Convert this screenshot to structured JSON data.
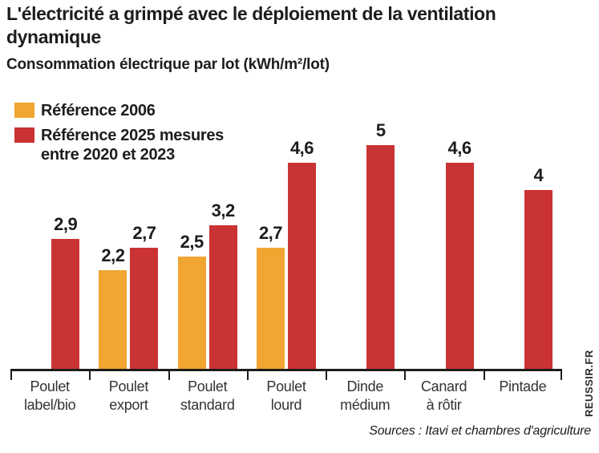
{
  "page": {
    "title": "L'électricité a grimpé avec le déploiement de la ventilation\ndynamique",
    "subtitle": "Consommation électrique par lot  (kWh/m²/lot)",
    "source": "Sources : Itavi et chambres d'agriculture",
    "watermark": "REUSSIR.FR"
  },
  "colors": {
    "orange": "#F0A630",
    "red": "#CA3333",
    "ink": "#1D1D1B"
  },
  "legend": {
    "items": [
      {
        "key": "reference-2006",
        "color": "#F0A630",
        "lines": [
          "Référence 2006"
        ]
      },
      {
        "key": "reference-2025",
        "color": "#CA3333",
        "lines": [
          "Référence 2025 mesures",
          "entre 2020 et 2023"
        ]
      }
    ]
  },
  "chart_data": {
    "type": "bar",
    "title": "L'électricité a grimpé avec le déploiement de la ventilation dynamique",
    "subtitle": "Consommation électrique par lot (kWh/m²/lot)",
    "ylabel": "kWh/m²/lot",
    "xlabel": "",
    "ylim": [
      0,
      5.6
    ],
    "grid": false,
    "legend_position": "top-left",
    "value_labels": true,
    "categories": [
      "Poulet\nlabel/bio",
      "Poulet\nexport",
      "Poulet\nstandard",
      "Poulet\nlourd",
      "Dinde\nmédium",
      "Canard\nà rôtir",
      "Pintade"
    ],
    "series": [
      {
        "name": "Référence 2006",
        "key": "reference-2006",
        "color": "#F0A630",
        "values": [
          null,
          2.2,
          2.5,
          2.7,
          null,
          null,
          null
        ],
        "labels": [
          null,
          "2,2",
          "2,5",
          "2,7",
          null,
          null,
          null
        ]
      },
      {
        "name": "Référence 2025 mesures entre 2020 et 2023",
        "key": "reference-2025",
        "color": "#CA3333",
        "values": [
          2.9,
          2.7,
          3.2,
          4.6,
          5,
          4.6,
          4
        ],
        "labels": [
          "2,9",
          "2,7",
          "3,2",
          "4,6",
          "5",
          "4,6",
          "4"
        ]
      }
    ]
  }
}
